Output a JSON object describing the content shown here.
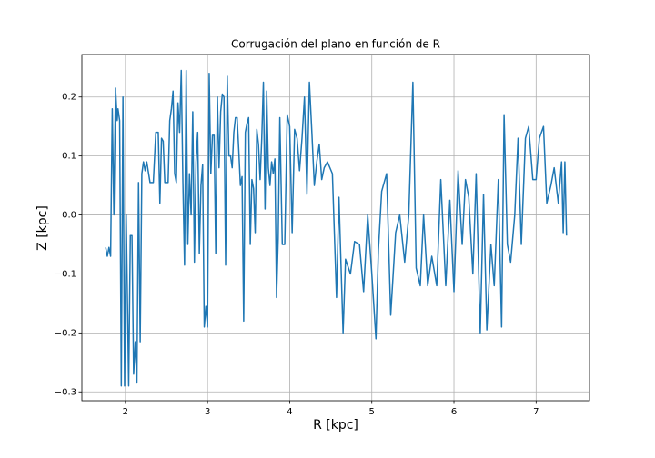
{
  "chart_data": {
    "type": "line",
    "title": "Corrugación del plano en función de R",
    "xlabel": "R [kpc]",
    "ylabel": "Z [kpc]",
    "color": "#1f77b4",
    "grid": true,
    "xlim": [
      1.47,
      7.65
    ],
    "ylim": [
      -0.315,
      0.272
    ],
    "xticks": [
      2,
      3,
      4,
      5,
      6,
      7
    ],
    "yticks": [
      {
        "value": -0.3,
        "label": "−0.3"
      },
      {
        "value": -0.2,
        "label": "−0.2"
      },
      {
        "value": -0.1,
        "label": "−0.1"
      },
      {
        "value": 0,
        "label": "0.0"
      },
      0.1,
      0.2
    ],
    "x": [
      1.76,
      1.78,
      1.8,
      1.82,
      1.84,
      1.86,
      1.88,
      1.9,
      1.91,
      1.93,
      1.95,
      1.97,
      1.99,
      2.01,
      2.04,
      2.06,
      2.08,
      2.1,
      2.12,
      2.14,
      2.16,
      2.18,
      2.2,
      2.22,
      2.24,
      2.26,
      2.3,
      2.34,
      2.37,
      2.4,
      2.42,
      2.44,
      2.46,
      2.48,
      2.52,
      2.54,
      2.56,
      2.58,
      2.6,
      2.62,
      2.64,
      2.66,
      2.68,
      2.7,
      2.72,
      2.74,
      2.76,
      2.78,
      2.8,
      2.82,
      2.84,
      2.86,
      2.88,
      2.9,
      2.92,
      2.94,
      2.96,
      2.98,
      3.0,
      3.02,
      3.04,
      3.06,
      3.08,
      3.1,
      3.12,
      3.14,
      3.16,
      3.18,
      3.2,
      3.22,
      3.24,
      3.26,
      3.28,
      3.3,
      3.32,
      3.34,
      3.36,
      3.38,
      3.4,
      3.42,
      3.44,
      3.46,
      3.48,
      3.5,
      3.52,
      3.54,
      3.56,
      3.58,
      3.6,
      3.62,
      3.64,
      3.66,
      3.68,
      3.7,
      3.72,
      3.74,
      3.76,
      3.78,
      3.8,
      3.82,
      3.84,
      3.86,
      3.88,
      3.91,
      3.94,
      3.97,
      4.0,
      4.03,
      4.06,
      4.09,
      4.12,
      4.15,
      4.18,
      4.21,
      4.24,
      4.27,
      4.3,
      4.33,
      4.36,
      4.39,
      4.42,
      4.46,
      4.52,
      4.57,
      4.6,
      4.65,
      4.68,
      4.74,
      4.79,
      4.85,
      4.9,
      4.95,
      5.0,
      5.05,
      5.08,
      5.12,
      5.18,
      5.23,
      5.29,
      5.34,
      5.4,
      5.45,
      5.5,
      5.54,
      5.59,
      5.63,
      5.68,
      5.73,
      5.79,
      5.84,
      5.9,
      5.95,
      6.0,
      6.05,
      6.1,
      6.14,
      6.18,
      6.23,
      6.27,
      6.32,
      6.36,
      6.4,
      6.45,
      6.49,
      6.54,
      6.58,
      6.61,
      6.65,
      6.69,
      6.74,
      6.78,
      6.82,
      6.87,
      6.91,
      6.96,
      7.0,
      7.04,
      7.09,
      7.13,
      7.18,
      7.22,
      7.27,
      7.31,
      7.33,
      7.35,
      7.37
    ],
    "values": [
      -0.055,
      -0.07,
      -0.055,
      -0.07,
      0.18,
      0.0,
      0.215,
      0.16,
      0.18,
      0.16,
      -0.29,
      0.2,
      -0.29,
      0.0,
      -0.29,
      -0.035,
      -0.035,
      -0.27,
      -0.215,
      -0.285,
      0.055,
      -0.215,
      0.07,
      0.09,
      0.075,
      0.09,
      0.055,
      0.055,
      0.14,
      0.14,
      0.02,
      0.13,
      0.125,
      0.055,
      0.055,
      0.16,
      0.18,
      0.21,
      0.07,
      0.055,
      0.19,
      0.14,
      0.245,
      0.055,
      -0.085,
      0.245,
      -0.05,
      0.07,
      0.0,
      0.175,
      -0.08,
      0.09,
      0.14,
      -0.065,
      0.05,
      0.085,
      -0.19,
      -0.155,
      -0.19,
      0.24,
      0.07,
      0.135,
      0.135,
      -0.065,
      0.2,
      0.08,
      0.175,
      0.205,
      0.2,
      -0.085,
      0.235,
      0.1,
      0.1,
      0.08,
      0.14,
      0.165,
      0.165,
      0.11,
      0.05,
      0.065,
      -0.18,
      0.14,
      0.155,
      0.165,
      -0.05,
      0.06,
      0.045,
      -0.03,
      0.145,
      0.12,
      0.06,
      0.13,
      0.225,
      0.01,
      0.21,
      0.08,
      0.05,
      0.09,
      0.07,
      0.095,
      -0.14,
      -0.04,
      0.165,
      -0.05,
      -0.05,
      0.17,
      0.15,
      -0.03,
      0.145,
      0.13,
      0.075,
      0.13,
      0.2,
      0.035,
      0.225,
      0.14,
      0.05,
      0.09,
      0.12,
      0.06,
      0.08,
      0.09,
      0.07,
      -0.14,
      0.03,
      -0.2,
      -0.075,
      -0.1,
      -0.045,
      -0.05,
      -0.13,
      0.0,
      -0.1,
      -0.21,
      -0.06,
      0.04,
      0.07,
      -0.17,
      -0.03,
      0.0,
      -0.08,
      0.0,
      0.225,
      -0.09,
      -0.12,
      0.0,
      -0.12,
      -0.07,
      -0.12,
      0.06,
      -0.12,
      0.025,
      -0.13,
      0.075,
      -0.05,
      0.06,
      0.03,
      -0.1,
      0.07,
      -0.2,
      0.035,
      -0.195,
      -0.05,
      -0.12,
      0.06,
      -0.19,
      0.17,
      -0.05,
      -0.08,
      0.0,
      0.13,
      -0.05,
      0.13,
      0.15,
      0.06,
      0.06,
      0.13,
      0.15,
      0.02,
      0.05,
      0.08,
      0.02,
      0.09,
      -0.03,
      0.09,
      -0.035
    ]
  }
}
